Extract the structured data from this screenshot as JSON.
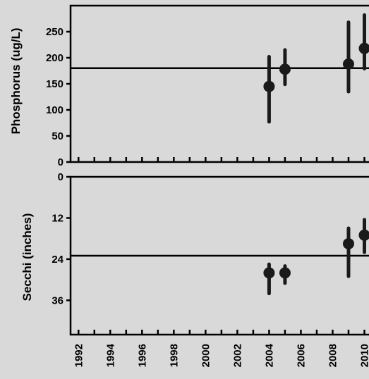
{
  "chart_data": [
    {
      "type": "scatter",
      "title": "",
      "xlabel": "",
      "ylabel": "Phosphorus (ug/L)",
      "ylim": [
        0,
        300
      ],
      "yticks": [
        0,
        50,
        100,
        150,
        200,
        250
      ],
      "reference_line": 180,
      "series": [
        {
          "points": [
            {
              "x": 2004,
              "y": 145,
              "low": 77,
              "high": 202
            },
            {
              "x": 2005,
              "y": 178,
              "low": 149,
              "high": 215
            },
            {
              "x": 2009,
              "y": 188,
              "low": 135,
              "high": 268
            },
            {
              "x": 2010,
              "y": 218,
              "low": 179,
              "high": 282
            }
          ]
        }
      ]
    },
    {
      "type": "scatter",
      "title": "",
      "xlabel": "",
      "ylabel": "Secchi (inches)",
      "ylim": [
        0,
        46
      ],
      "y_inverted": true,
      "yticks": [
        0,
        12,
        24,
        36
      ],
      "reference_line": 23,
      "series": [
        {
          "points": [
            {
              "x": 2004,
              "y": 28,
              "low": 25.5,
              "high": 34
            },
            {
              "x": 2005,
              "y": 28,
              "low": 26,
              "high": 31
            },
            {
              "x": 2009,
              "y": 19.5,
              "low": 15,
              "high": 29
            },
            {
              "x": 2010,
              "y": 17,
              "low": 12.5,
              "high": 22
            }
          ]
        }
      ]
    }
  ],
  "x_axis": {
    "min": 1991.5,
    "max": 2010.6,
    "tick_labels": [
      "1992",
      "1994",
      "1996",
      "1998",
      "2000",
      "2002",
      "2004",
      "2006",
      "2008",
      "2010"
    ]
  }
}
